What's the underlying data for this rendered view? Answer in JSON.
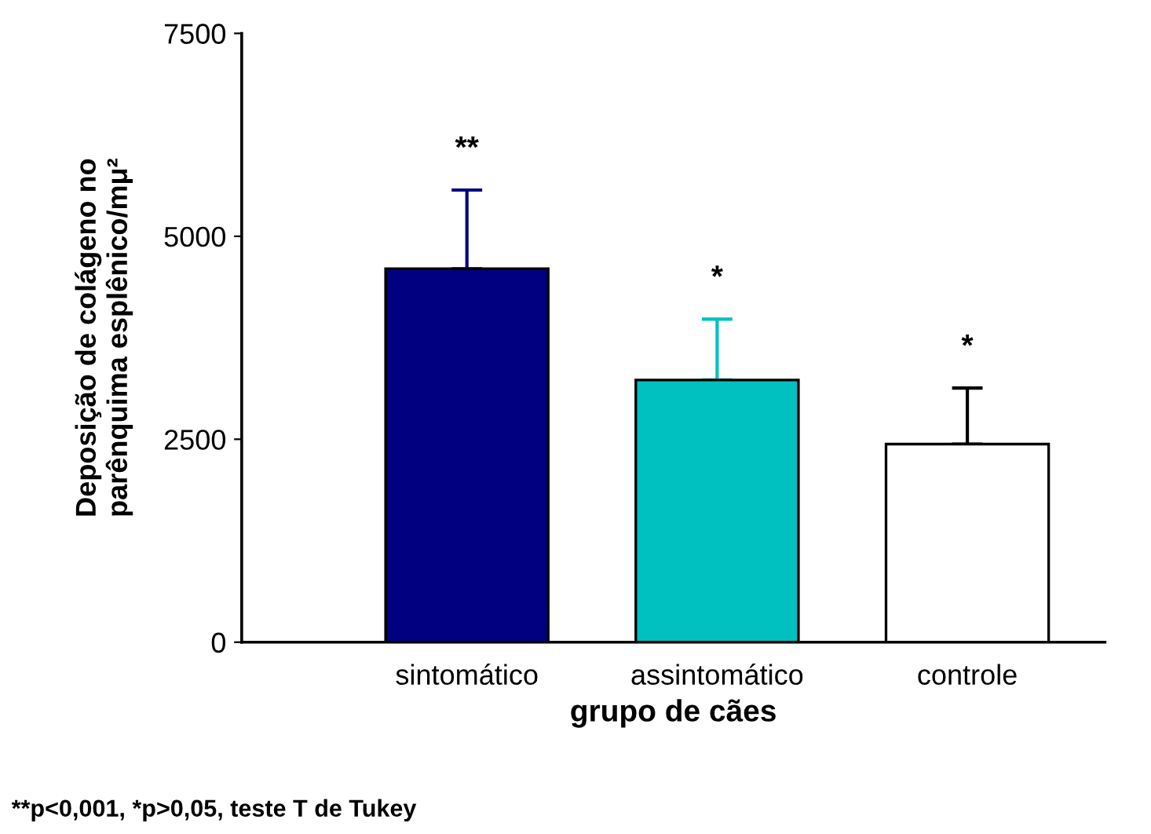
{
  "chart_data": {
    "type": "bar",
    "xlabel": "grupo de cães",
    "ylabel": "Deposição de colágeno no\nparênquima esplênico/mμ²",
    "categories": [
      "sintomático",
      "assintomático",
      "controle"
    ],
    "values": [
      4600,
      3230,
      2440
    ],
    "colors": [
      "#000080",
      "#00c0c0",
      "#ffffff"
    ],
    "errors": [
      [
        4600,
        5570
      ],
      [
        3230,
        3980
      ],
      [
        2440,
        3130
      ]
    ],
    "ylim": [
      0,
      7500
    ],
    "yticks": [
      0,
      2500,
      5000,
      7500
    ],
    "grid": false,
    "annotations": [
      {
        "text": "**",
        "x": "sintomático",
        "y": 5570
      },
      {
        "text": "*",
        "x": "assintomático",
        "y": 3980
      },
      {
        "text": "*",
        "x": "controle",
        "y": 3130
      },
      "**p<0,001, *p>0,05, teste T de Tukey"
    ]
  }
}
